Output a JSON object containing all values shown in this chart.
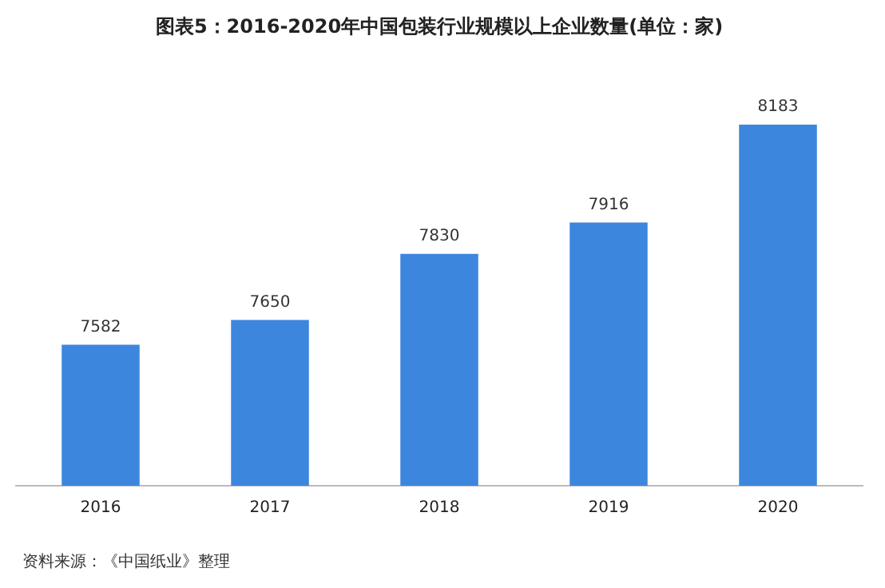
{
  "chart_data": {
    "type": "bar",
    "title": "图表5：2016-2020年中国包装行业规模以上企业数量(单位：家)",
    "categories": [
      "2016",
      "2017",
      "2018",
      "2019",
      "2020"
    ],
    "values": [
      7582,
      7650,
      7830,
      7916,
      8183
    ],
    "color": "#3d86de",
    "data_labels": true,
    "tick_labels": "x",
    "grid": false,
    "legend": false,
    "annotations": [
      "资料来源：《中国纸业》整理"
    ]
  }
}
